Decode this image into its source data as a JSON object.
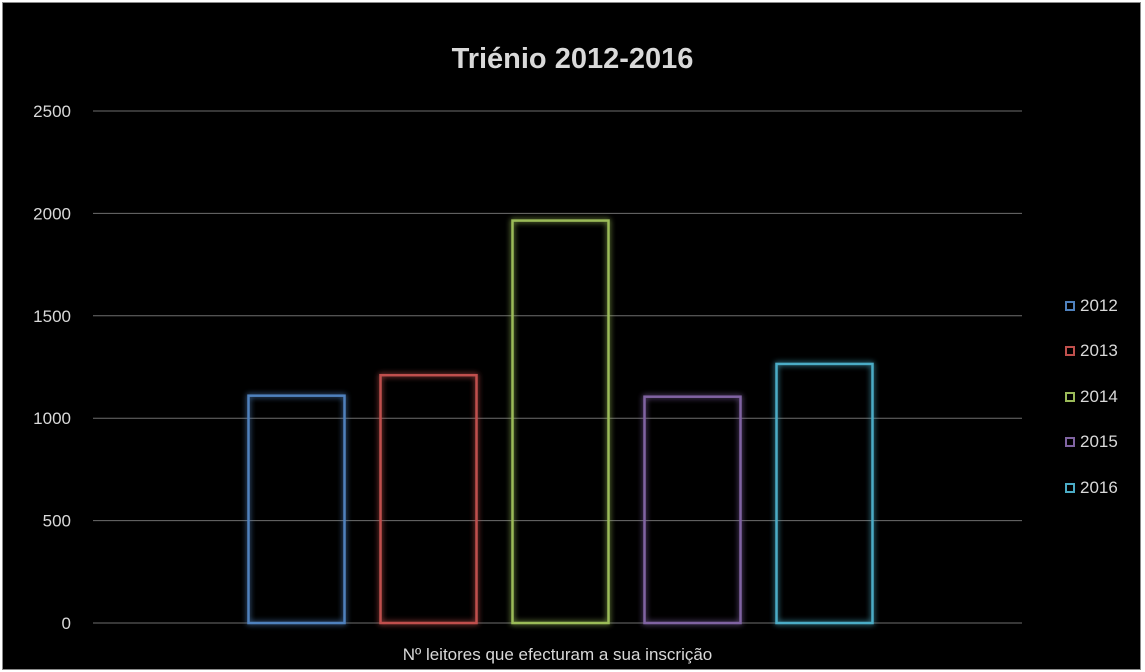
{
  "chart_data": {
    "type": "bar",
    "title": "Triénio 2012-2016",
    "categories": [
      "Nº leitores que efecturam a sua inscrição"
    ],
    "series": [
      {
        "name": "2012",
        "value": 1110,
        "color": "#4f81bd"
      },
      {
        "name": "2013",
        "value": 1210,
        "color": "#c0504d"
      },
      {
        "name": "2014",
        "value": 1965,
        "color": "#9bbb59"
      },
      {
        "name": "2015",
        "value": 1105,
        "color": "#8064a2"
      },
      {
        "name": "2016",
        "value": 1265,
        "color": "#4bacc6"
      }
    ],
    "ylim": [
      0,
      2500
    ],
    "yticks": [
      0,
      500,
      1000,
      1500,
      2000,
      2500
    ],
    "grid": true,
    "legend_position": "right"
  }
}
